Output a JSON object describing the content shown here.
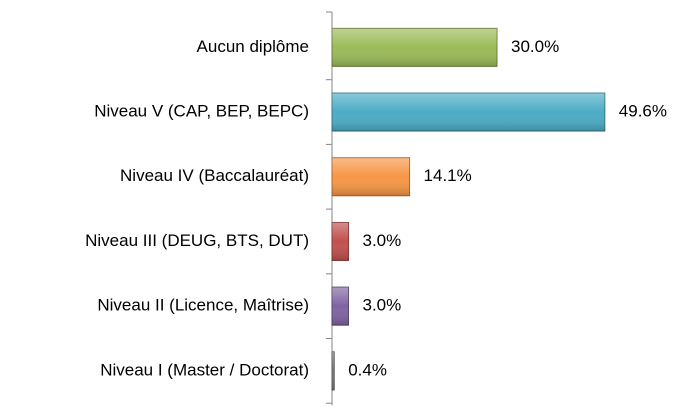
{
  "chart_data": {
    "type": "bar",
    "orientation": "horizontal",
    "categories": [
      "Aucun diplôme",
      "Niveau V (CAP, BEP, BEPC)",
      "Niveau IV (Baccalauréat)",
      "Niveau III (DEUG, BTS, DUT)",
      "Niveau II (Licence, Maîtrise)",
      "Niveau I (Master / Doctorat)"
    ],
    "values": [
      30.0,
      49.6,
      14.1,
      3.0,
      3.0,
      0.4
    ],
    "value_labels": [
      "30.0%",
      "49.6%",
      "14.1%",
      "3.0%",
      "3.0%",
      "0.4%"
    ],
    "colors": [
      "#9bbb59",
      "#4bacc6",
      "#f79646",
      "#c0504d",
      "#8064a2",
      "#7f7f7f"
    ]
  }
}
